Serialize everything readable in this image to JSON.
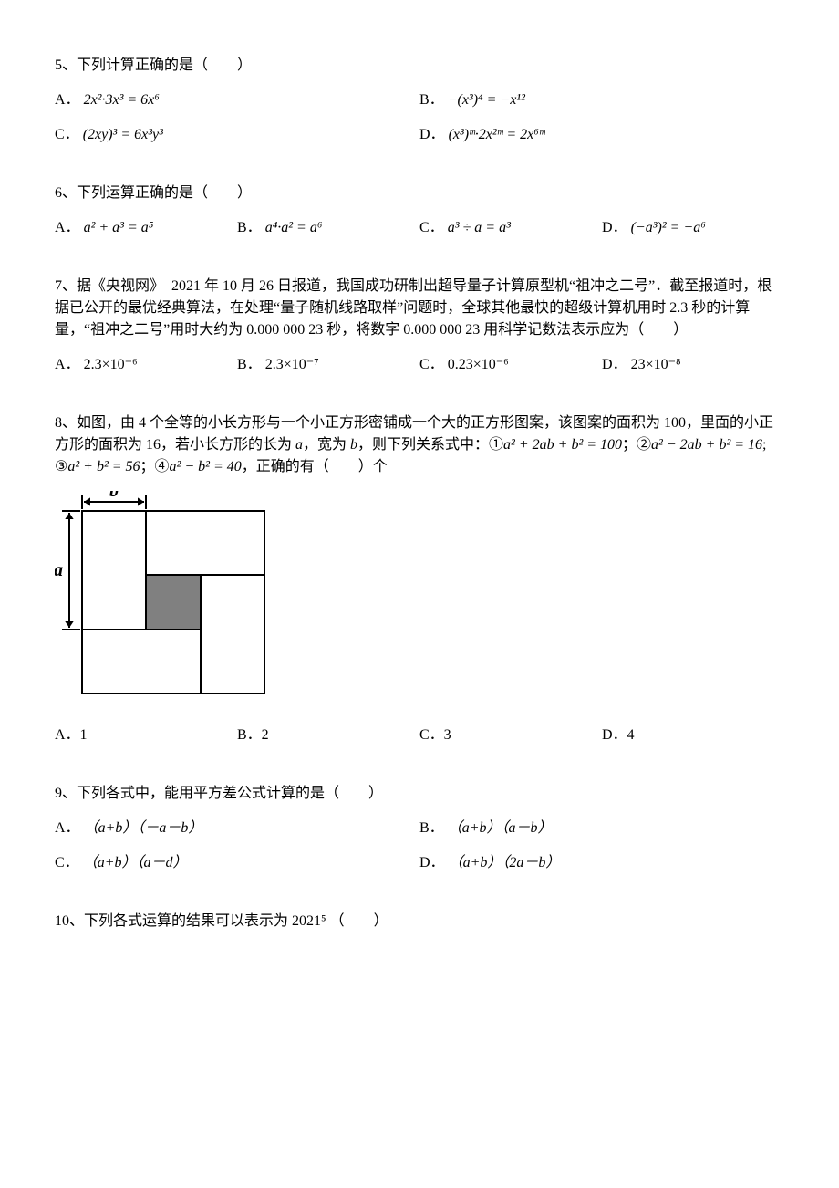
{
  "q5": {
    "stem": "5、下列计算正确的是（　　）",
    "A": {
      "label": "A．",
      "expr": "2x²·3x³ = 6x⁶"
    },
    "B": {
      "label": "B．",
      "expr": "−(x³)⁴ = −x¹²"
    },
    "C": {
      "label": "C．",
      "expr": "(2xy)³ = 6x³y³"
    },
    "D": {
      "label": "D．",
      "expr": "(x³)ᵐ·2x²ᵐ = 2x⁶ᵐ"
    }
  },
  "q6": {
    "stem": "6、下列运算正确的是（　　）",
    "A": {
      "label": "A．",
      "expr": "a² + a³ = a⁵"
    },
    "B": {
      "label": "B．",
      "expr": "a⁴·a² = a⁶"
    },
    "C": {
      "label": "C．",
      "expr": "a³ ÷ a = a³"
    },
    "D": {
      "label": "D．",
      "expr": "(−a³)² = −a⁶"
    }
  },
  "q7": {
    "stem": "7、据《央视网》　2021 年 10 月 26 日报道，我国成功研制出超导量子计算原型机“祖冲之二号”．截至报道时，根据已公开的最优经典算法，在处理“量子随机线路取样”问题时，全球其他最快的超级计算机用时 2.3 秒的计算量，“祖冲之二号”用时大约为 0.000 000 23 秒，将数字 0.000 000 23 用科学记数法表示应为（　　）",
    "A": {
      "label": "A．",
      "expr": "2.3×10⁻⁶"
    },
    "B": {
      "label": "B．",
      "expr": "2.3×10⁻⁷"
    },
    "C": {
      "label": "C．",
      "expr": "0.23×10⁻⁶"
    },
    "D": {
      "label": "D．",
      "expr": "23×10⁻⁸"
    }
  },
  "q8": {
    "stem_pre": "8、如图，由 4 个全等的小长方形与一个小正方形密铺成一个大的正方形图案，该图案的面积为 100，里面的小正方形的面积为 16，若小长方形的长为 ",
    "stem_mid1": "，宽为 ",
    "stem_mid2": "，则下列关系式中：①",
    "eq1": "a² + 2ab + b² = 100",
    "sep1": "；②",
    "eq2": "a² − 2ab + b² = 16",
    "sep2": "; ③",
    "eq3": "a² + b² = 56",
    "sep3": "；④",
    "eq4": "a² − b² = 40",
    "sep4": "，正确的有（　　）个",
    "a_label": "a",
    "b_label": "b",
    "A": "A．1",
    "B": "B．2",
    "C": "C．3",
    "D": "D．4",
    "fig": {
      "outer_side": 200,
      "a_len": 130,
      "b_len": 70,
      "stroke": "#000000",
      "fill_small": "#808080",
      "font_family": "Times New Roman",
      "font_style": "italic",
      "font_size": 20
    }
  },
  "q9": {
    "stem": "9、下列各式中，能用平方差公式计算的是（　　）",
    "A": {
      "label": "A．",
      "expr": "（a+b）（－a－b）"
    },
    "B": {
      "label": "B．",
      "expr": "（a+b）（a－b）"
    },
    "C": {
      "label": "C．",
      "expr": "（a+b）（a－d）"
    },
    "D": {
      "label": "D．",
      "expr": "（a+b）（2a－b）"
    }
  },
  "q10": {
    "stem_pre": "10、下列各式运算的结果可以表示为",
    "expr": "2021⁵",
    "stem_post": "（　　）"
  },
  "colors": {
    "text": "#000000",
    "background": "#ffffff"
  }
}
